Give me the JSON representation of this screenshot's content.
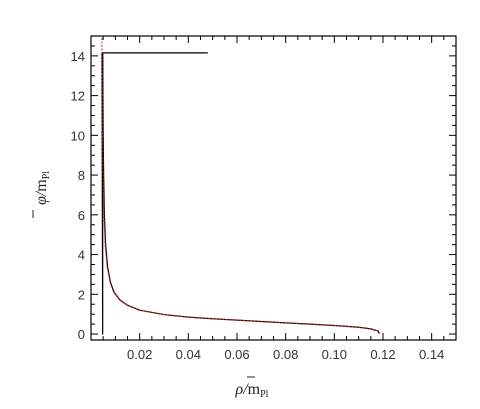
{
  "chart_data": {
    "type": "line",
    "xlabel": {
      "symbol": "ρ",
      "slash": "/",
      "unit": "m",
      "unit_sub": "Pl"
    },
    "ylabel": {
      "symbol": "φ",
      "slash": "/",
      "unit": "m",
      "unit_sub": "Pl"
    },
    "xlim": [
      0.0,
      0.15
    ],
    "ylim": [
      -0.3,
      15.0
    ],
    "x_ticks": [
      0.02,
      0.04,
      0.06,
      0.08,
      0.1,
      0.12,
      0.14
    ],
    "x_tick_labels": [
      "0.02",
      "0.04",
      "0.06",
      "0.08",
      "0.10",
      "0.12",
      "0.14"
    ],
    "y_ticks": [
      0,
      2,
      4,
      6,
      8,
      10,
      12,
      14
    ],
    "y_tick_labels": [
      "0",
      "2",
      "4",
      "6",
      "8",
      "10",
      "12",
      "14"
    ],
    "grid": false,
    "series": [
      {
        "color": "#000000",
        "points": [
          [
            0.0045,
            14.15
          ],
          [
            0.0048,
            0
          ],
          [
            0.0048,
            14.15
          ],
          [
            0.0048,
            14.15
          ],
          [
            0.048,
            14.15
          ]
        ]
      },
      {
        "color": "#000000",
        "points": [
          [
            0.0048,
            14.15
          ],
          [
            0.0049,
            12
          ],
          [
            0.005,
            10
          ],
          [
            0.0052,
            8
          ],
          [
            0.0055,
            6
          ],
          [
            0.006,
            4.5
          ],
          [
            0.0068,
            3.4
          ],
          [
            0.008,
            2.6
          ],
          [
            0.0095,
            2.1
          ],
          [
            0.012,
            1.7
          ],
          [
            0.015,
            1.45
          ],
          [
            0.02,
            1.2
          ],
          [
            0.03,
            0.98
          ],
          [
            0.04,
            0.85
          ],
          [
            0.05,
            0.77
          ],
          [
            0.06,
            0.7
          ],
          [
            0.07,
            0.63
          ],
          [
            0.08,
            0.56
          ],
          [
            0.09,
            0.5
          ],
          [
            0.1,
            0.43
          ],
          [
            0.11,
            0.34
          ],
          [
            0.115,
            0.26
          ],
          [
            0.118,
            0.15
          ],
          [
            0.1185,
            0.02
          ]
        ]
      },
      {
        "color": "#cc2222",
        "dashed": true,
        "points": [
          [
            0.0045,
            14.9
          ],
          [
            0.0046,
            12
          ],
          [
            0.0047,
            10
          ],
          [
            0.005,
            8
          ],
          [
            0.0053,
            6
          ],
          [
            0.0058,
            4.5
          ],
          [
            0.0066,
            3.4
          ],
          [
            0.0078,
            2.6
          ],
          [
            0.0093,
            2.1
          ],
          [
            0.0118,
            1.7
          ],
          [
            0.0148,
            1.45
          ],
          [
            0.0198,
            1.2
          ],
          [
            0.0298,
            0.98
          ],
          [
            0.0398,
            0.85
          ],
          [
            0.0498,
            0.77
          ],
          [
            0.0598,
            0.7
          ],
          [
            0.0698,
            0.63
          ],
          [
            0.0798,
            0.56
          ],
          [
            0.0898,
            0.5
          ],
          [
            0.0998,
            0.43
          ],
          [
            0.1098,
            0.34
          ],
          [
            0.1148,
            0.26
          ],
          [
            0.1178,
            0.15
          ],
          [
            0.1183,
            0.02
          ]
        ]
      }
    ]
  }
}
